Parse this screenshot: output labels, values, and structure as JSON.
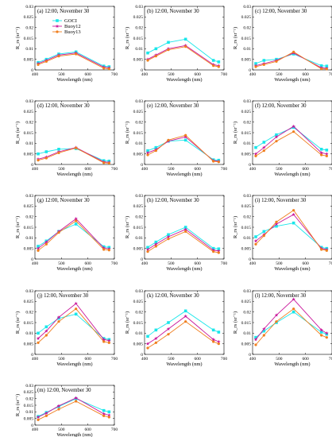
{
  "figure": {
    "series": [
      {
        "name": "GOCI",
        "color": "#19e6ea",
        "marker": "square"
      },
      {
        "name": "Buoy12",
        "color": "#c9179b",
        "marker": "star"
      },
      {
        "name": "Buoy13",
        "color": "#f07e1e",
        "marker": "circle"
      }
    ],
    "xlabel": "Wavelength (nm)",
    "ylabel": "R_rs (sr⁻¹)",
    "xlim": [
      400,
      700
    ],
    "ylim": [
      0,
      0.03
    ],
    "xticks": [
      "400",
      "500",
      "600",
      "700"
    ],
    "yticks": [
      "0",
      "0.005",
      "0.01",
      "0.015",
      "0.02",
      "0.025",
      "0.03"
    ]
  },
  "chart_data": [
    {
      "type": "line",
      "title": "(a)  12:00, November 30",
      "show_legend": true,
      "x": [
        412,
        443,
        490,
        555,
        660,
        680
      ],
      "series": [
        {
          "name": "GOCI",
          "values": [
            0.0035,
            0.005,
            0.0075,
            0.0085,
            0.0018,
            0.0015
          ]
        },
        {
          "name": "Buoy12",
          "values": [
            0.003,
            0.0045,
            0.007,
            0.008,
            0.0013,
            0.001
          ]
        },
        {
          "name": "Buoy13",
          "values": [
            0.0025,
            0.004,
            0.0065,
            0.0075,
            0.0008,
            0.0005
          ]
        }
      ]
    },
    {
      "type": "line",
      "title": "(b)  12:00, November 30",
      "x": [
        412,
        443,
        490,
        555,
        660,
        680
      ],
      "series": [
        {
          "name": "GOCI",
          "values": [
            0.008,
            0.01,
            0.013,
            0.0145,
            0.0045,
            0.0038
          ]
        },
        {
          "name": "Buoy12",
          "values": [
            0.005,
            0.007,
            0.01,
            0.0115,
            0.0025,
            0.002
          ]
        },
        {
          "name": "Buoy13",
          "values": [
            0.0045,
            0.0065,
            0.0095,
            0.011,
            0.002,
            0.0015
          ]
        }
      ]
    },
    {
      "type": "line",
      "title": "(c)  12:00, November 30",
      "x": [
        412,
        443,
        490,
        555,
        660,
        680
      ],
      "series": [
        {
          "name": "GOCI",
          "values": [
            0.003,
            0.0045,
            0.005,
            0.0075,
            0.002,
            0.0018
          ]
        },
        {
          "name": "Buoy12",
          "values": [
            0.002,
            0.003,
            0.0045,
            0.008,
            0.001,
            0.0008
          ]
        },
        {
          "name": "Buoy13",
          "values": [
            0.0015,
            0.0025,
            0.004,
            0.0085,
            0.0005,
            0.0004
          ]
        }
      ]
    },
    {
      "type": "line",
      "title": "(d)  12:00, November 30",
      "x": [
        412,
        443,
        490,
        555,
        660,
        680
      ],
      "series": [
        {
          "name": "GOCI",
          "values": [
            0.005,
            0.006,
            0.0072,
            0.0075,
            0.0018,
            0.0016
          ]
        },
        {
          "name": "Buoy12",
          "values": [
            0.0025,
            0.0035,
            0.006,
            0.008,
            0.0012,
            0.001
          ]
        },
        {
          "name": "Buoy13",
          "values": [
            0.002,
            0.003,
            0.0055,
            0.0078,
            0.0008,
            0.0006
          ]
        }
      ]
    },
    {
      "type": "line",
      "title": "(e)  12:00, November 30",
      "x": [
        412,
        443,
        490,
        555,
        660,
        680
      ],
      "series": [
        {
          "name": "GOCI",
          "values": [
            0.0065,
            0.008,
            0.011,
            0.0115,
            0.0022,
            0.002
          ]
        },
        {
          "name": "Buoy12",
          "values": [
            0.0055,
            0.007,
            0.011,
            0.013,
            0.0018,
            0.0015
          ]
        },
        {
          "name": "Buoy13",
          "values": [
            0.0045,
            0.0065,
            0.0115,
            0.0138,
            0.0015,
            0.0012
          ]
        }
      ]
    },
    {
      "type": "line",
      "title": "(f)  12:00, November 30",
      "x": [
        412,
        443,
        490,
        555,
        660,
        680
      ],
      "series": [
        {
          "name": "GOCI",
          "values": [
            0.008,
            0.0105,
            0.014,
            0.0175,
            0.0072,
            0.0068
          ]
        },
        {
          "name": "Buoy12",
          "values": [
            0.005,
            0.008,
            0.013,
            0.018,
            0.0055,
            0.005
          ]
        },
        {
          "name": "Buoy13",
          "values": [
            0.004,
            0.0065,
            0.011,
            0.0155,
            0.0045,
            0.004
          ]
        }
      ]
    },
    {
      "type": "line",
      "title": "(g)  12:00, November 30",
      "x": [
        412,
        443,
        490,
        555,
        660,
        680
      ],
      "series": [
        {
          "name": "GOCI",
          "values": [
            0.006,
            0.0085,
            0.013,
            0.0165,
            0.0058,
            0.0055
          ]
        },
        {
          "name": "Buoy12",
          "values": [
            0.005,
            0.008,
            0.013,
            0.019,
            0.0052,
            0.0048
          ]
        },
        {
          "name": "Buoy13",
          "values": [
            0.004,
            0.007,
            0.0125,
            0.018,
            0.0045,
            0.0042
          ]
        }
      ]
    },
    {
      "type": "line",
      "title": "(h)  12:00, November 30",
      "x": [
        412,
        443,
        490,
        555,
        660,
        680
      ],
      "series": [
        {
          "name": "GOCI",
          "values": [
            0.0055,
            0.008,
            0.0115,
            0.015,
            0.005,
            0.0048
          ]
        },
        {
          "name": "Buoy12",
          "values": [
            0.0045,
            0.007,
            0.0105,
            0.014,
            0.0042,
            0.0038
          ]
        },
        {
          "name": "Buoy13",
          "values": [
            0.0035,
            0.006,
            0.0095,
            0.013,
            0.0035,
            0.003
          ]
        }
      ]
    },
    {
      "type": "line",
      "title": "(i)  12:00, November 30",
      "x": [
        412,
        443,
        490,
        555,
        660,
        680
      ],
      "series": [
        {
          "name": "GOCI",
          "values": [
            0.0105,
            0.013,
            0.0155,
            0.017,
            0.0055,
            0.005
          ]
        },
        {
          "name": "Buoy12",
          "values": [
            0.0085,
            0.0115,
            0.0165,
            0.021,
            0.005,
            0.0045
          ]
        },
        {
          "name": "Buoy13",
          "values": [
            0.007,
            0.011,
            0.0175,
            0.023,
            0.0045,
            0.004
          ]
        }
      ]
    },
    {
      "type": "line",
      "title": "(j)  12:00, November 30",
      "x": [
        412,
        443,
        490,
        555,
        660,
        680
      ],
      "series": [
        {
          "name": "GOCI",
          "values": [
            0.01,
            0.013,
            0.017,
            0.019,
            0.0075,
            0.007
          ]
        },
        {
          "name": "Buoy12",
          "values": [
            0.0075,
            0.011,
            0.0175,
            0.024,
            0.007,
            0.0065
          ]
        },
        {
          "name": "Buoy13",
          "values": [
            0.0055,
            0.009,
            0.0155,
            0.0215,
            0.006,
            0.0055
          ]
        }
      ]
    },
    {
      "type": "line",
      "title": "(k)  12:00, November 30",
      "x": [
        412,
        443,
        490,
        555,
        660,
        680
      ],
      "series": [
        {
          "name": "GOCI",
          "values": [
            0.0085,
            0.0115,
            0.015,
            0.0205,
            0.0115,
            0.0105
          ]
        },
        {
          "name": "Buoy12",
          "values": [
            0.005,
            0.0075,
            0.012,
            0.018,
            0.007,
            0.006
          ]
        },
        {
          "name": "Buoy13",
          "values": [
            0.003,
            0.0055,
            0.0095,
            0.0155,
            0.006,
            0.005
          ]
        }
      ]
    },
    {
      "type": "line",
      "title": "(l)  12:00, November 30",
      "x": [
        412,
        443,
        490,
        555,
        660,
        680
      ],
      "series": [
        {
          "name": "GOCI",
          "values": [
            0.008,
            0.011,
            0.015,
            0.02,
            0.0105,
            0.0095
          ]
        },
        {
          "name": "Buoy12",
          "values": [
            0.007,
            0.012,
            0.0185,
            0.026,
            0.0115,
            0.01
          ]
        },
        {
          "name": "Buoy13",
          "values": [
            0.0045,
            0.009,
            0.0155,
            0.0215,
            0.009,
            0.008
          ]
        }
      ]
    },
    {
      "type": "line",
      "title": "(m)  12:00, November 30",
      "x": [
        412,
        443,
        490,
        555,
        660,
        680
      ],
      "series": [
        {
          "name": "GOCI",
          "values": [
            0.0065,
            0.0095,
            0.014,
            0.02,
            0.011,
            0.01
          ]
        },
        {
          "name": "Buoy12",
          "values": [
            0.006,
            0.009,
            0.0145,
            0.0205,
            0.0085,
            0.0075
          ]
        },
        {
          "name": "Buoy13",
          "values": [
            0.004,
            0.007,
            0.012,
            0.018,
            0.007,
            0.006
          ]
        }
      ]
    }
  ]
}
